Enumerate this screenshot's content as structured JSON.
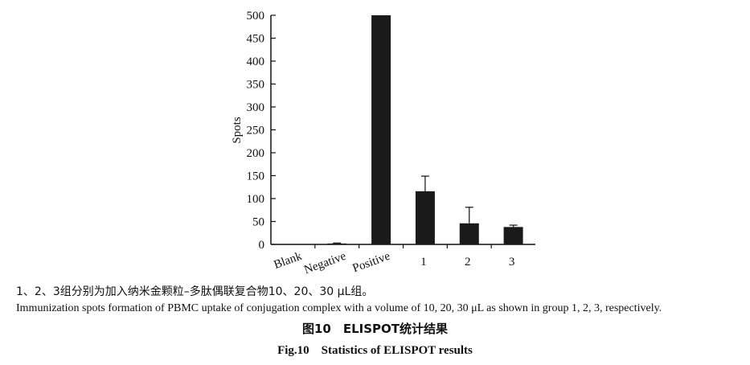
{
  "chart_data": {
    "type": "bar",
    "ylabel": "Spots",
    "xlabel": "",
    "ylim": [
      0,
      500
    ],
    "yticks": [
      0,
      50,
      100,
      150,
      200,
      250,
      300,
      350,
      400,
      450,
      500
    ],
    "categories": [
      "Blank",
      "Negative",
      "Positive",
      "1",
      "2",
      "3"
    ],
    "values": [
      0,
      2,
      500,
      116,
      46,
      38
    ],
    "errors": [
      0,
      1,
      0,
      33,
      35,
      4
    ],
    "bar_color": "#1a1a1a",
    "grid": false
  },
  "caption": {
    "note_cn": "1、2、3组分别为加入纳米金颗粒–多肽偶联复合物10、20、30 μL组。",
    "note_en": "Immunization spots formation of PBMC uptake of conjugation complex with a volume of 10, 20, 30 μL as shown in group 1, 2, 3, respectively.",
    "title_cn": "图10　ELISPOT统计结果",
    "title_en": "Fig.10　Statistics of ELISPOT results"
  }
}
